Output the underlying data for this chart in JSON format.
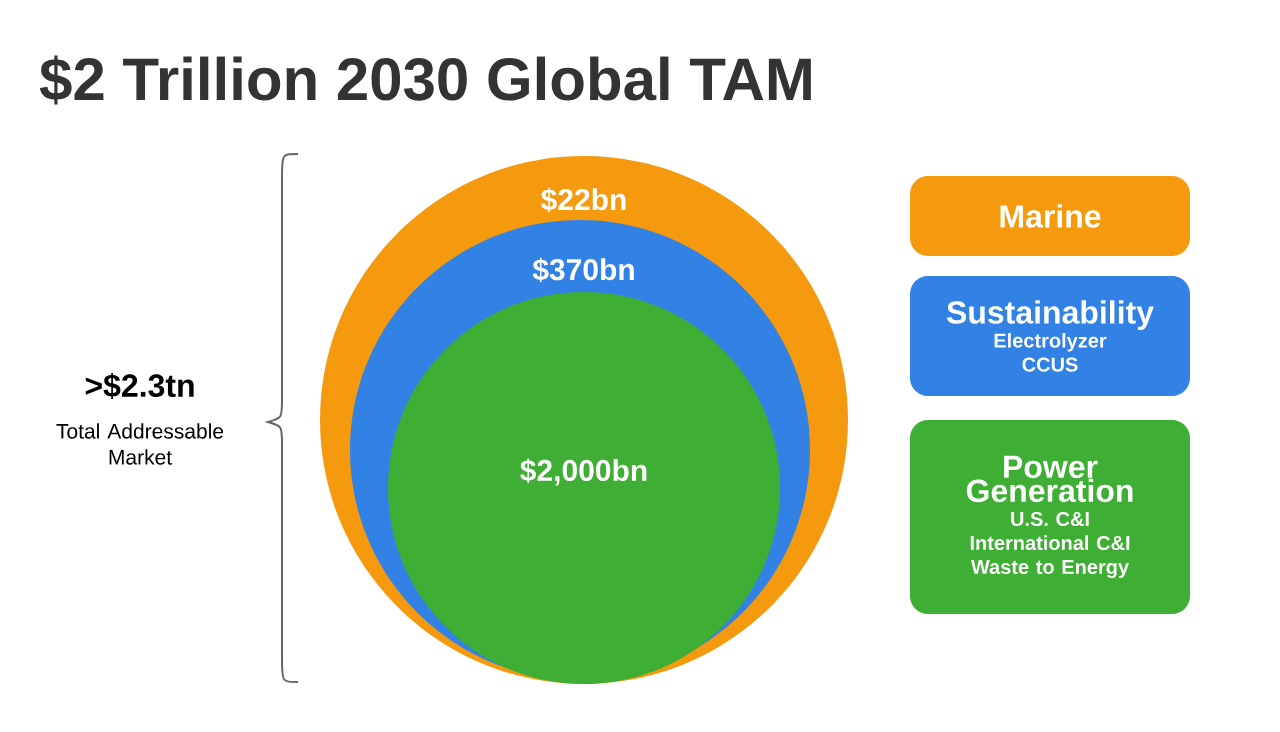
{
  "chart_data": {
    "type": "other",
    "title": "$2 Trillion 2030 Global TAM",
    "categories": [
      "Marine",
      "Sustainability",
      "Power Generation"
    ],
    "values": [
      22,
      370,
      2000
    ],
    "value_labels": [
      "$22bn",
      "$370bn",
      "$2,000bn"
    ],
    "colors": [
      "#f59a0e",
      "#3282e6",
      "#3fae35"
    ],
    "annotations": [
      ">$2.3tn",
      "Total Addressable Market",
      "Electrolyzer",
      "CCUS",
      "U.S. C&I",
      "International C&I",
      "Waste to Energy"
    ]
  }
}
